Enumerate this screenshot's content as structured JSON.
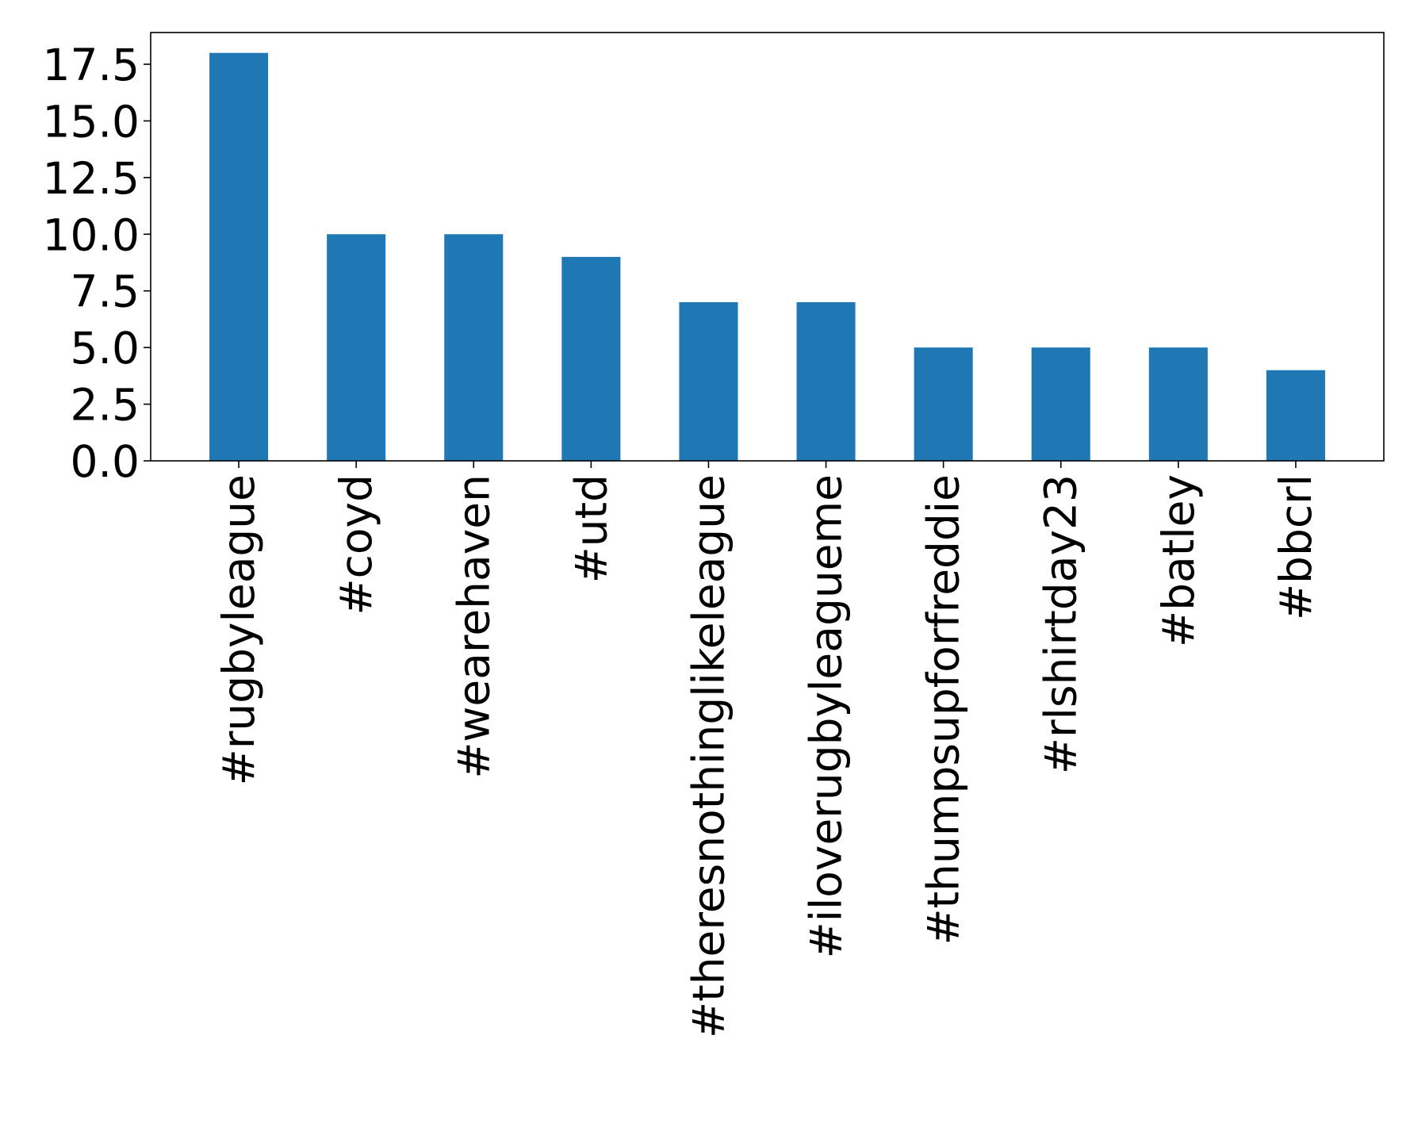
{
  "chart_data": {
    "type": "bar",
    "categories": [
      "#rugbyleague",
      "#coyd",
      "#wearehaven",
      "#utd",
      "#theresnothinglikeleague",
      "#iloverugbyleagueme",
      "#thumpsupforfreddie",
      "#rlshirtday23",
      "#batley",
      "#bbcrl"
    ],
    "values": [
      18,
      10,
      10,
      9,
      7,
      7,
      5,
      5,
      5,
      4
    ],
    "title": "",
    "xlabel": "",
    "ylabel": "",
    "ylim": [
      0,
      18.9
    ],
    "yticks": [
      0.0,
      2.5,
      5.0,
      7.5,
      10.0,
      12.5,
      15.0,
      17.5
    ],
    "ytick_labels": [
      "0.0",
      "2.5",
      "5.0",
      "7.5",
      "10.0",
      "12.5",
      "15.0",
      "17.5"
    ],
    "bar_color": "#1f77b4",
    "grid": false,
    "legend": "none"
  }
}
